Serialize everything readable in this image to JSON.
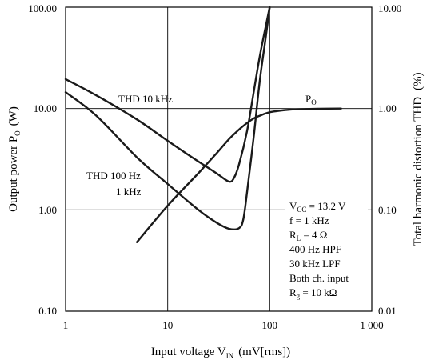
{
  "chart_data": {
    "type": "line",
    "x_scale": "log",
    "y_scale": "log",
    "xlim": [
      1,
      1000
    ],
    "ylim_left": [
      0.1,
      100
    ],
    "ylim_right": [
      0.01,
      10
    ],
    "grid": true,
    "x_ticks": [
      "1",
      "10",
      "100",
      "1 000"
    ],
    "y_ticks_left": [
      "0.10",
      "1.00",
      "10.00",
      "100.00"
    ],
    "y_ticks_right": [
      "0.01",
      "0.10",
      "1.00",
      "10.00"
    ],
    "xlabel": {
      "main": "Input voltage  V",
      "sub": "IN",
      "unit": "(mV[rms])"
    },
    "ylabel_left": {
      "main": "Output power  P",
      "sub": "O",
      "unit": "(W)"
    },
    "ylabel_right": {
      "main": "Total harmonic distortion  THD",
      "unit": "(%)"
    },
    "series": [
      {
        "name": "PO",
        "axis": "left",
        "x": [
          5,
          10,
          20,
          30,
          40,
          50,
          60,
          70,
          80,
          100,
          150,
          200,
          300,
          500
        ],
        "y": [
          0.48,
          1.1,
          2.3,
          3.6,
          5.0,
          6.2,
          7.2,
          8.0,
          8.5,
          9.2,
          9.7,
          9.85,
          9.95,
          10.0
        ]
      },
      {
        "name": "THD 10 kHz",
        "axis": "right",
        "x": [
          1,
          2,
          5,
          10,
          20,
          30,
          40,
          45,
          50,
          60,
          70,
          80,
          90,
          100
        ],
        "y": [
          1.95,
          1.35,
          0.78,
          0.48,
          0.3,
          0.23,
          0.19,
          0.21,
          0.28,
          0.6,
          1.5,
          3.3,
          6.0,
          10.0
        ]
      },
      {
        "name": "THD 100 Hz / 1 kHz",
        "axis": "right",
        "x": [
          1,
          2,
          5,
          10,
          20,
          30,
          40,
          50,
          55,
          60,
          70,
          80,
          90,
          100
        ],
        "y": [
          1.45,
          0.85,
          0.33,
          0.18,
          0.1,
          0.075,
          0.065,
          0.066,
          0.08,
          0.15,
          0.55,
          1.9,
          4.5,
          10.0
        ]
      }
    ],
    "annotations": {
      "po": {
        "main": "P",
        "sub": "O"
      },
      "thd10k": "THD 10 kHz",
      "thd100_line1": "THD 100 Hz",
      "thd100_line2": "1 kHz",
      "cond": {
        "vcc": {
          "main": "V",
          "sub": "CC",
          "rest": " = 13.2 V"
        },
        "f": "f = 1 kHz",
        "rl": {
          "main": "R",
          "sub": "L",
          "rest": " = 4 Ω"
        },
        "hpf": "400 Hz HPF",
        "lpf": "30 kHz LPF",
        "both": "Both ch. input",
        "rg": {
          "main": "R",
          "sub": "g",
          "rest": " = 10 kΩ"
        }
      }
    }
  }
}
